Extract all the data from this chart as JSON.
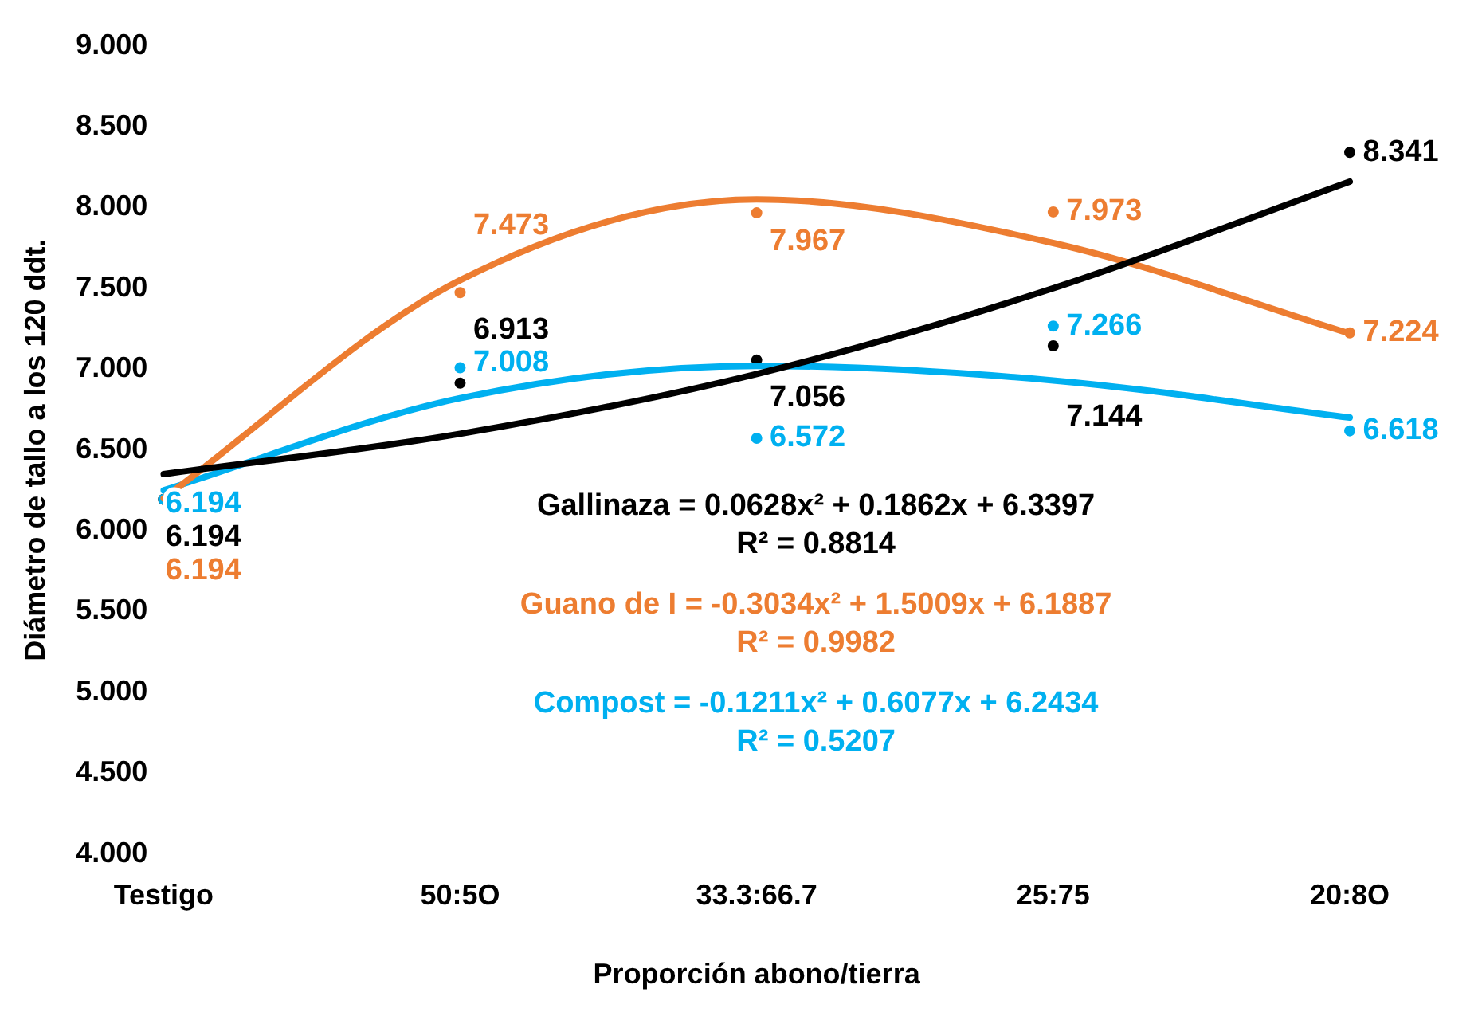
{
  "chart_data": {
    "type": "line",
    "xlabel": "Proporción abono/tierra",
    "ylabel": "Diámetro de tallo a los 120 ddt.",
    "categories": [
      "Testigo",
      "50:5O",
      "33.3:66.7",
      "25:75",
      "20:8O"
    ],
    "ylim": [
      4,
      9
    ],
    "yticks": [
      {
        "value": 4,
        "label": "4.000"
      },
      {
        "value": 4.5,
        "label": "4.500"
      },
      {
        "value": 5,
        "label": "5.000"
      },
      {
        "value": 5.5,
        "label": "5.500"
      },
      {
        "value": 6,
        "label": "6.000"
      },
      {
        "value": 6.5,
        "label": "6.500"
      },
      {
        "value": 7,
        "label": "7.000"
      },
      {
        "value": 7.5,
        "label": "7.500"
      },
      {
        "value": 8,
        "label": "8.000"
      },
      {
        "value": 8.5,
        "label": "8.500"
      },
      {
        "value": 9,
        "label": "9.000"
      }
    ],
    "grid": false,
    "legend": false,
    "series": [
      {
        "type": "line",
        "color": "#000000",
        "marker": "none",
        "values": [
          6.35,
          6.6,
          6.97,
          7.5,
          8.16
        ]
      },
      {
        "type": "line",
        "color": "#ed7d31",
        "marker": "none",
        "values": [
          6.2,
          7.55,
          8.05,
          7.78,
          7.22
        ]
      },
      {
        "type": "line",
        "color": "#00b0f0",
        "marker": "none",
        "values": [
          6.25,
          6.82,
          7.02,
          6.93,
          6.7
        ]
      },
      {
        "type": "scatter",
        "color": "#00b0f0",
        "marker": "circle",
        "values": [
          6.194,
          7.008,
          6.572,
          7.266,
          6.618
        ],
        "value_labels": [
          "6.194",
          "7.008",
          "6.572",
          "7.266",
          "6.618"
        ]
      },
      {
        "type": "scatter",
        "color": "#000000",
        "marker": "circle",
        "values": [
          6.194,
          6.913,
          7.056,
          7.144,
          8.341
        ],
        "value_labels": [
          "6.194",
          "6.913",
          "7.056",
          "7.144",
          "8.341"
        ]
      },
      {
        "type": "scatter",
        "color": "#ed7d31",
        "marker": "circle",
        "values": [
          6.194,
          7.473,
          7.967,
          7.973,
          7.224
        ],
        "value_labels": [
          "6.194",
          "7.473",
          "7.967",
          "7.973",
          "7.224"
        ]
      }
    ],
    "annotations": [
      "Gallinaza = 0.0628x² + 0.1862x + 6.3397\nR² = 0.8814",
      "Guano de I = -0.3034x² + 1.5009x + 6.1887\nR² = 0.9982",
      "Compost = -0.1211x² + 0.6077x + 6.2434\nR² = 0.5207"
    ]
  }
}
